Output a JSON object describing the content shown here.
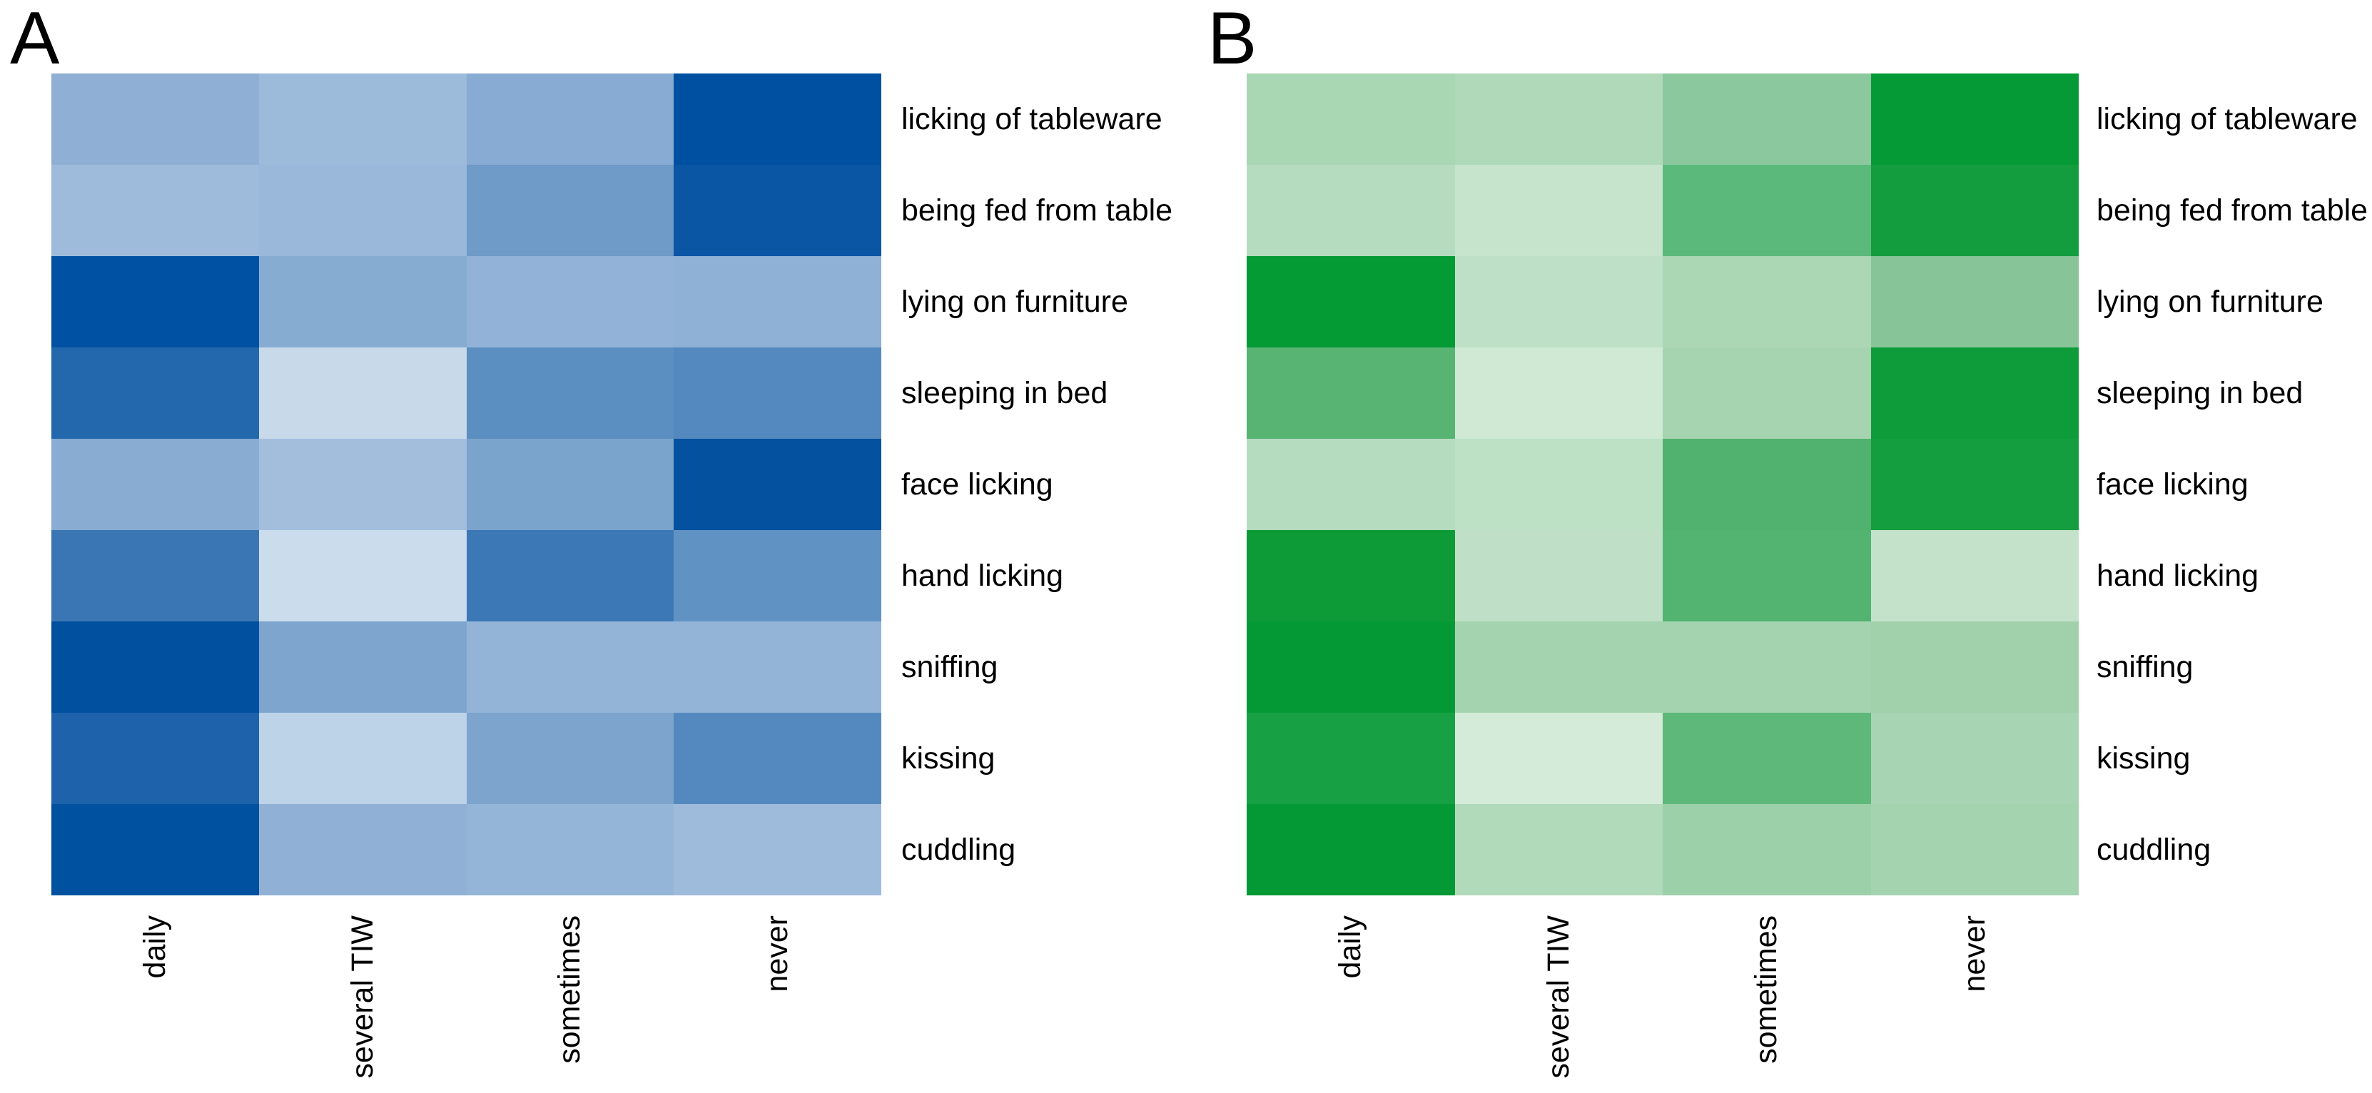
{
  "figure": {
    "background": "#ffffff",
    "legend": "none",
    "row_label_color": "#000000",
    "col_label_rotation": "90deg, reads bottom-to-top"
  },
  "chart_data": [
    {
      "type": "heatmap",
      "panel": "A",
      "palette": "blues (light = low, dark = high)",
      "columns": [
        "daily",
        "several TIW",
        "sometimes",
        "never"
      ],
      "rows": [
        "licking of tableware",
        "being fed from table",
        "lying on furniture",
        "sleeping in bed",
        "face licking",
        "hand licking",
        "sniffing",
        "kissing",
        "cuddling"
      ],
      "cell_colors": [
        [
          "#8FB0D4",
          "#9CBADA",
          "#87ABD2",
          "#0050A2"
        ],
        [
          "#9EBBDB",
          "#9AB8DA",
          "#6E9BC8",
          "#0A56A5"
        ],
        [
          "#0051A3",
          "#87ACD2",
          "#92B3D7",
          "#8EB1D5"
        ],
        [
          "#2368AD",
          "#C8DAEA",
          "#5B8EC1",
          "#5489BF"
        ],
        [
          "#89ACD3",
          "#A3BEDD",
          "#7BA4CD",
          "#03519F"
        ],
        [
          "#3A76B4",
          "#CBDCEC",
          "#3C78B6",
          "#6092C4"
        ],
        [
          "#0050A0",
          "#7DA5CE",
          "#93B4D7",
          "#93B4D7"
        ],
        [
          "#1D62AA",
          "#BDD3E8",
          "#7CA4CD",
          "#5489BF"
        ],
        [
          "#00519F",
          "#90B1D5",
          "#95B5D8",
          "#9FBBDB"
        ]
      ]
    },
    {
      "type": "heatmap",
      "panel": "B",
      "palette": "greens (light = low, dark = high)",
      "columns": [
        "daily",
        "several TIW",
        "sometimes",
        "never"
      ],
      "rows": [
        "licking of tableware",
        "being fed from table",
        "lying on furniture",
        "sleeping in bed",
        "face licking",
        "hand licking",
        "sniffing",
        "kissing",
        "cuddling"
      ],
      "cell_colors": [
        [
          "#A9D6B3",
          "#AFD9B9",
          "#8CC89D",
          "#059A35"
        ],
        [
          "#B6DCBF",
          "#C6E4CC",
          "#5BB97C",
          "#149D3F"
        ],
        [
          "#049A34",
          "#BEE0C6",
          "#ABD7B4",
          "#87C598"
        ],
        [
          "#57B473",
          "#CFE9D5",
          "#A6D4B1",
          "#0E9C3A"
        ],
        [
          "#B6DCBF",
          "#BCE1C5",
          "#50B26E",
          "#159E3F"
        ],
        [
          "#0D9B38",
          "#BFE0C6",
          "#53B371",
          "#C4E2CA"
        ],
        [
          "#049934",
          "#A4D3AF",
          "#A4D3AF",
          "#A0D1AB"
        ],
        [
          "#17A044",
          "#D5EBD9",
          "#5DB879",
          "#A7D4B2"
        ],
        [
          "#049934",
          "#B1DABB",
          "#9CD0A9",
          "#A4D3AF"
        ]
      ]
    }
  ]
}
